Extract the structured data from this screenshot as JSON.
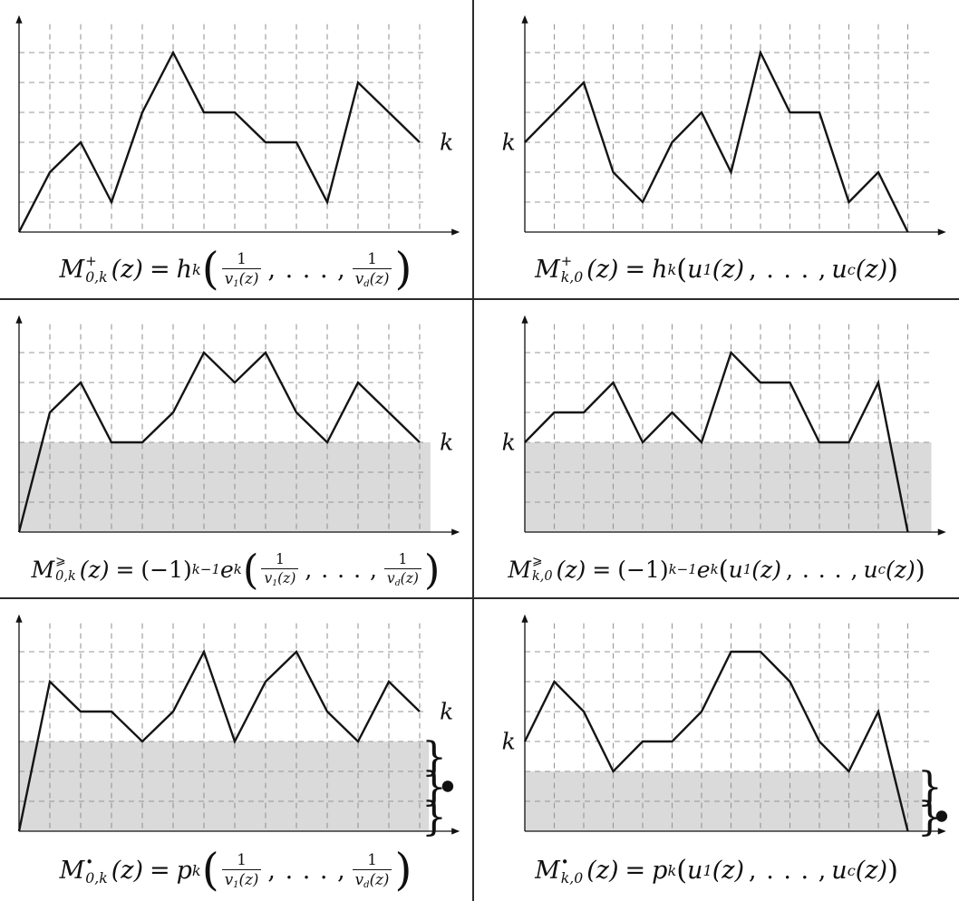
{
  "figure": {
    "rows": 3,
    "cols": 2,
    "k_label": "k",
    "background": "#ffffff",
    "grid_color": "#979797",
    "path_color": "#141414",
    "shade_color": "#dadada",
    "divider_color": "#2b2b2b"
  },
  "chart_data": [
    {
      "id": "top-left",
      "type": "line",
      "row": 0,
      "col": 0,
      "x_range": [
        0,
        13
      ],
      "y_range": [
        0,
        6
      ],
      "grid": "dashed",
      "points": [
        [
          0,
          0
        ],
        [
          1,
          2
        ],
        [
          2,
          3
        ],
        [
          3,
          1
        ],
        [
          4,
          4
        ],
        [
          5,
          6
        ],
        [
          6,
          4
        ],
        [
          7,
          4
        ],
        [
          8,
          3
        ],
        [
          9,
          3
        ],
        [
          10,
          1
        ],
        [
          11,
          5
        ],
        [
          13,
          3
        ]
      ],
      "k_level": 3,
      "k_side": "right",
      "shade": null,
      "braces": [],
      "caption": "M^+_{0,k}(z) = h_k(1/v_1(z), . . . , 1/v_d(z))"
    },
    {
      "id": "top-right",
      "type": "line",
      "row": 0,
      "col": 1,
      "x_range": [
        0,
        13
      ],
      "y_range": [
        0,
        6
      ],
      "grid": "dashed",
      "points": [
        [
          0,
          3
        ],
        [
          2,
          5
        ],
        [
          3,
          2
        ],
        [
          4,
          1
        ],
        [
          5,
          3
        ],
        [
          6,
          4
        ],
        [
          7,
          2
        ],
        [
          8,
          6
        ],
        [
          9,
          4
        ],
        [
          10,
          4
        ],
        [
          11,
          1
        ],
        [
          12,
          2
        ],
        [
          13,
          0
        ]
      ],
      "k_level": 3,
      "k_side": "left",
      "shade": null,
      "braces": [],
      "caption": "M^+_{k,0}(z) = h_k(u_1(z), . . . , u_c(z))"
    },
    {
      "id": "middle-left",
      "type": "line",
      "row": 1,
      "col": 0,
      "x_range": [
        0,
        13
      ],
      "y_range": [
        0,
        6
      ],
      "grid": "dashed",
      "points": [
        [
          0,
          0
        ],
        [
          1,
          4
        ],
        [
          2,
          5
        ],
        [
          3,
          3
        ],
        [
          4,
          3
        ],
        [
          5,
          4
        ],
        [
          6,
          6
        ],
        [
          7,
          5
        ],
        [
          8,
          6
        ],
        [
          9,
          4
        ],
        [
          10,
          3
        ],
        [
          11,
          5
        ],
        [
          13,
          3
        ]
      ],
      "k_level": 3,
      "k_side": "right",
      "shade": {
        "x_from": 0,
        "x_to": 13.35,
        "level_from": 0,
        "level_to": 3
      },
      "braces": [],
      "caption": "M^⩾_{0,k}(z) = (−1)^{k−1} e_k(1/v_1(z), . . . , 1/v_d(z))"
    },
    {
      "id": "middle-right",
      "type": "line",
      "row": 1,
      "col": 1,
      "x_range": [
        0,
        13
      ],
      "y_range": [
        0,
        6
      ],
      "grid": "dashed",
      "points": [
        [
          0,
          3
        ],
        [
          1,
          4
        ],
        [
          2,
          4
        ],
        [
          3,
          5
        ],
        [
          4,
          3
        ],
        [
          5,
          4
        ],
        [
          6,
          3
        ],
        [
          7,
          6
        ],
        [
          8,
          5
        ],
        [
          9,
          5
        ],
        [
          10,
          3
        ],
        [
          11,
          3
        ],
        [
          12,
          5
        ],
        [
          13,
          0
        ]
      ],
      "k_level": 3,
      "k_side": "left",
      "shade": {
        "x_from": 0,
        "x_to": 13.8,
        "level_from": 0,
        "level_to": 3
      },
      "braces": [],
      "caption": "M^⩾_{k,0}(z) = (−1)^{k−1} e_k(u_1(z), . . . , u_c(z))"
    },
    {
      "id": "bottom-left",
      "type": "line",
      "row": 2,
      "col": 0,
      "x_range": [
        0,
        13
      ],
      "y_range": [
        0,
        6
      ],
      "grid": "dashed",
      "points": [
        [
          0,
          0
        ],
        [
          1,
          5
        ],
        [
          2,
          4
        ],
        [
          3,
          4
        ],
        [
          4,
          3
        ],
        [
          5,
          4
        ],
        [
          6,
          6
        ],
        [
          7,
          3
        ],
        [
          8,
          5
        ],
        [
          9,
          6
        ],
        [
          10,
          4
        ],
        [
          11,
          3
        ],
        [
          12,
          5
        ],
        [
          13,
          4
        ]
      ],
      "k_level": 4,
      "k_side": "right",
      "shade": {
        "x_from": 0,
        "x_to": 13.3,
        "level_from": 0,
        "level_to": 3
      },
      "braces": [
        {
          "x": 13.47,
          "from": 2,
          "to": 3,
          "bullet": false
        },
        {
          "x": 13.47,
          "from": 1,
          "to": 2,
          "bullet": true
        },
        {
          "x": 13.47,
          "from": 0,
          "to": 1,
          "bullet": false
        }
      ],
      "caption": "M^•_{0,k}(z) = p_k(1/v_1(z), . . . , 1/v_d(z))"
    },
    {
      "id": "bottom-right",
      "type": "line",
      "row": 2,
      "col": 1,
      "x_range": [
        0,
        13
      ],
      "y_range": [
        0,
        6
      ],
      "grid": "dashed",
      "points": [
        [
          0,
          3
        ],
        [
          1,
          5
        ],
        [
          2,
          4
        ],
        [
          3,
          2
        ],
        [
          4,
          3
        ],
        [
          5,
          3
        ],
        [
          6,
          4
        ],
        [
          7,
          6
        ],
        [
          8,
          6
        ],
        [
          9,
          5
        ],
        [
          10,
          3
        ],
        [
          11,
          2
        ],
        [
          12,
          4
        ],
        [
          13,
          0
        ]
      ],
      "k_level": 3,
      "k_side": "left",
      "shade": {
        "x_from": 0,
        "x_to": 13.5,
        "level_from": 0,
        "level_to": 2
      },
      "braces": [
        {
          "x": 13.75,
          "from": 1,
          "to": 2,
          "bullet": false
        },
        {
          "x": 13.75,
          "from": 0,
          "to": 1,
          "bullet": true
        }
      ],
      "caption": "M^•_{k,0}(z) = p_k(u_1(z), . . . , u_c(z))"
    }
  ],
  "captions": {
    "shared": {
      "M": "M",
      "z": "(z)",
      "eq": "=",
      "one": "1",
      "dots": ", . . . ,",
      "v": "v",
      "u": "u",
      "sub1": "1",
      "subd": "d",
      "subc": "c",
      "subk": "k",
      "zp": "(z)",
      "lp": "(",
      "rp": ")"
    },
    "tl": {
      "sup": "+",
      "sub": "0,k",
      "head": "h"
    },
    "tr": {
      "sup": "+",
      "sub": "k,0",
      "head": "h"
    },
    "ml": {
      "sup": "⩾",
      "sub": "0,k",
      "neg": "(−1)",
      "negsup": "k−1",
      "head": "e"
    },
    "mr": {
      "sup": "⩾",
      "sub": "k,0",
      "neg": "(−1)",
      "negsup": "k−1",
      "head": "e"
    },
    "bl": {
      "sup": "•",
      "sub": "0,k",
      "head": "p"
    },
    "br": {
      "sup": "•",
      "sub": "k,0",
      "head": "p"
    }
  }
}
